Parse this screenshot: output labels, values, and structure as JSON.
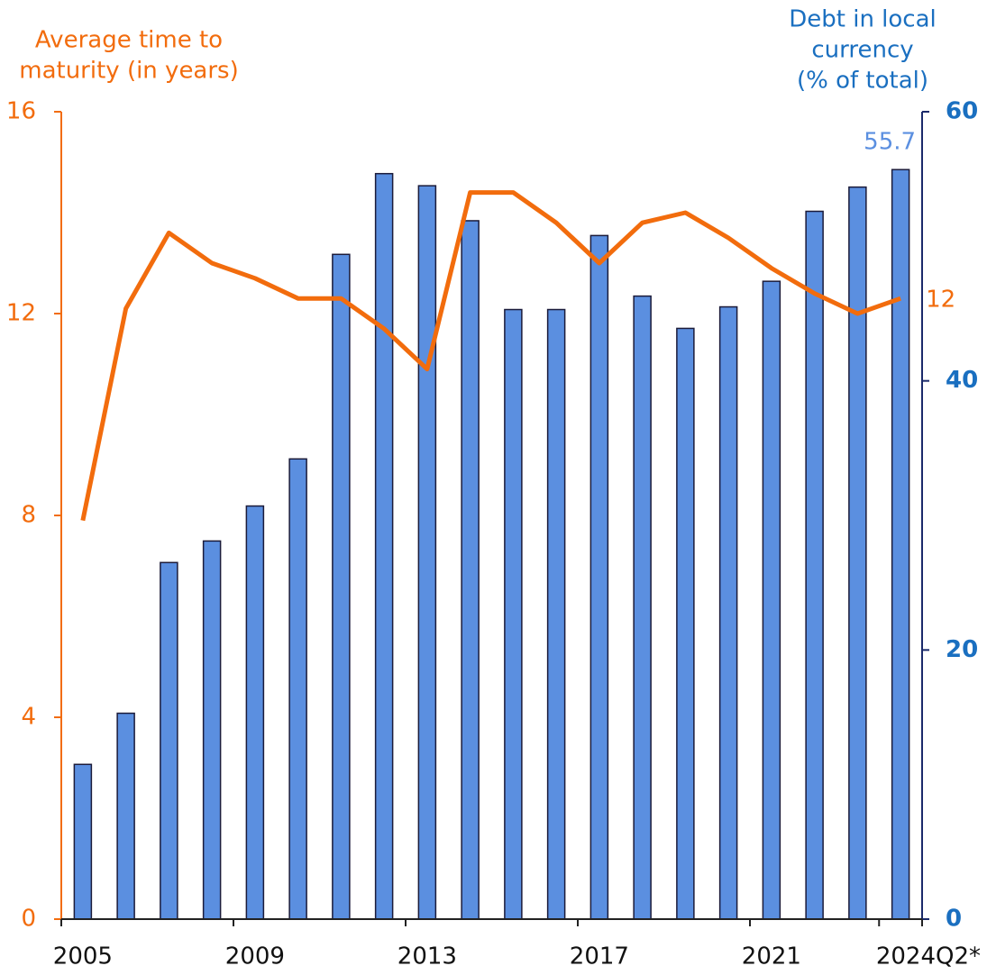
{
  "chart_data": {
    "type": "combo",
    "y_label": [
      "Average time to",
      "maturity (in years)"
    ],
    "y2_label": [
      "Debt in local",
      "currency",
      "(% of total)"
    ],
    "categories": [
      "2005",
      null,
      null,
      null,
      "2009",
      null,
      null,
      null,
      "2013",
      null,
      null,
      null,
      "2017",
      null,
      null,
      null,
      "2021",
      null,
      null,
      "2024Q2*"
    ],
    "series": [
      {
        "type": "bar",
        "axis": "y2",
        "color": "#5b8fe0",
        "values": [
          11.5,
          15.3,
          26.5,
          28.1,
          30.7,
          34.2,
          49.4,
          55.4,
          54.5,
          51.9,
          45.3,
          45.3,
          50.8,
          46.3,
          43.9,
          45.5,
          47.4,
          52.6,
          54.4,
          55.7
        ],
        "value_labels": [
          null,
          null,
          null,
          null,
          null,
          null,
          null,
          null,
          null,
          null,
          null,
          null,
          null,
          null,
          null,
          null,
          null,
          null,
          null,
          "55.7"
        ]
      },
      {
        "type": "line",
        "axis": "y",
        "color": "#f26c0d",
        "values": [
          7.9,
          12.1,
          13.6,
          13.0,
          12.7,
          12.3,
          12.3,
          11.7,
          10.9,
          14.4,
          14.4,
          13.8,
          13.0,
          13.8,
          14.0,
          13.5,
          12.9,
          12.4,
          12.0,
          12.3
        ],
        "value_labels": [
          null,
          null,
          null,
          null,
          null,
          null,
          null,
          null,
          null,
          null,
          null,
          null,
          null,
          null,
          null,
          null,
          null,
          null,
          null,
          "12"
        ]
      }
    ],
    "ylim": [
      0,
      16
    ],
    "yticks": [
      0,
      4,
      8,
      12,
      16
    ],
    "y2lim": [
      0,
      60
    ],
    "y2ticks": [
      0,
      20,
      40,
      60
    ],
    "y_color": "#f26c0d",
    "y2_color": "#1a6fc0"
  }
}
